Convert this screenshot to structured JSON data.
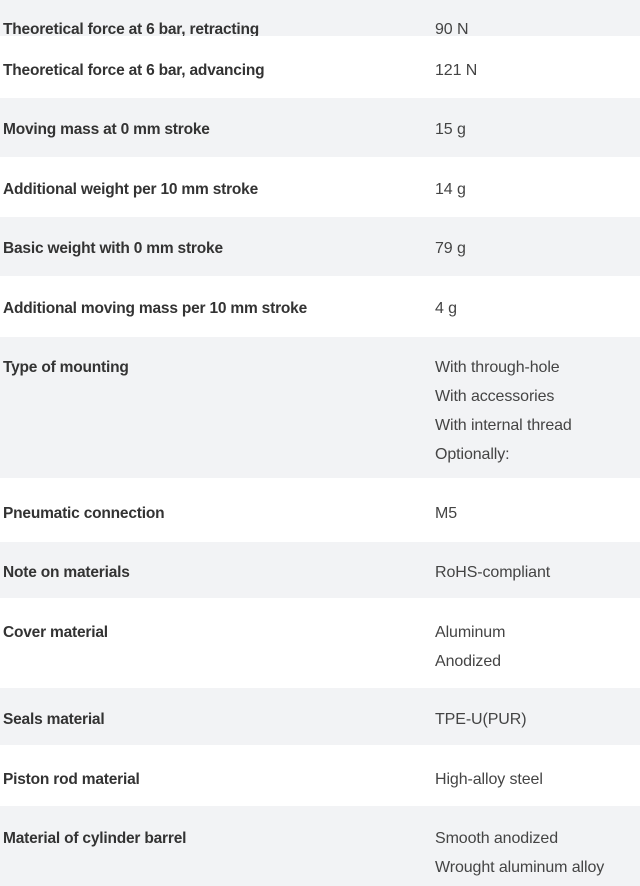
{
  "rows": [
    {
      "label": "Theoretical force at 6 bar, retracting",
      "values": [
        "90 N"
      ]
    },
    {
      "label": "Theoretical force at 6 bar, advancing",
      "values": [
        "121 N"
      ]
    },
    {
      "label": "Moving mass at 0 mm stroke",
      "values": [
        "15 g"
      ]
    },
    {
      "label": "Additional weight per 10 mm stroke",
      "values": [
        "14 g"
      ]
    },
    {
      "label": "Basic weight with 0 mm stroke",
      "values": [
        "79 g"
      ]
    },
    {
      "label": "Additional moving mass per 10 mm stroke",
      "values": [
        "4 g"
      ]
    },
    {
      "label": "Type of mounting",
      "values": [
        "With through-hole",
        "With accessories",
        "With internal thread",
        "Optionally:"
      ]
    },
    {
      "label": "Pneumatic connection",
      "values": [
        "M5"
      ]
    },
    {
      "label": "Note on materials",
      "values": [
        "RoHS-compliant"
      ]
    },
    {
      "label": "Cover material",
      "values": [
        "Aluminum",
        "Anodized"
      ]
    },
    {
      "label": "Seals material",
      "values": [
        "TPE-U(PUR)"
      ]
    },
    {
      "label": "Piston rod material",
      "values": [
        "High-alloy steel"
      ]
    },
    {
      "label": "Material of cylinder barrel",
      "values": [
        "Smooth anodized",
        "Wrought aluminum alloy"
      ]
    }
  ],
  "colors": {
    "stripe": "#f2f3f5",
    "background": "#ffffff",
    "text": "#333333"
  }
}
